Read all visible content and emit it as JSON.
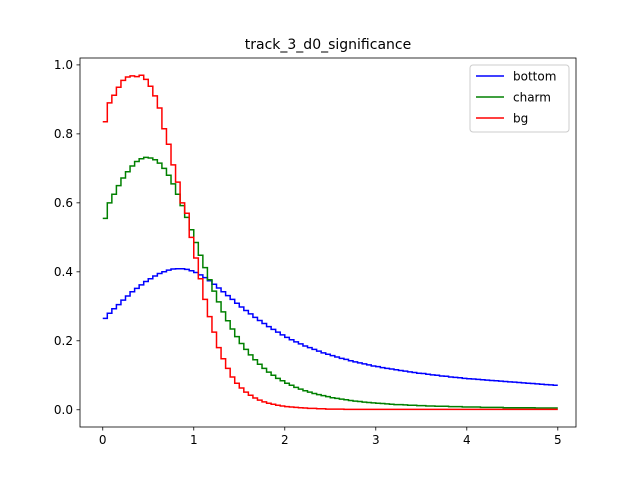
{
  "chart_data": {
    "type": "line",
    "drawstyle": "steps",
    "title": "track_3_d0_significance",
    "xlabel": "",
    "ylabel": "",
    "xlim": [
      -0.25,
      5.2
    ],
    "ylim": [
      -0.05,
      1.02
    ],
    "xticks": [
      0,
      1,
      2,
      3,
      4,
      5
    ],
    "xtick_labels": [
      "0",
      "1",
      "2",
      "3",
      "4",
      "5"
    ],
    "yticks": [
      0.0,
      0.2,
      0.4,
      0.6,
      0.8,
      1.0
    ],
    "ytick_labels": [
      "0.0",
      "0.2",
      "0.4",
      "0.6",
      "0.8",
      "1.0"
    ],
    "grid": false,
    "legend_position": "top-right",
    "bin_width": 0.05,
    "x_start": 0.0,
    "series": [
      {
        "name": "bottom",
        "color": "#0000ff",
        "values": [
          0.265,
          0.28,
          0.293,
          0.305,
          0.318,
          0.33,
          0.342,
          0.352,
          0.362,
          0.372,
          0.38,
          0.388,
          0.395,
          0.4,
          0.405,
          0.408,
          0.409,
          0.409,
          0.407,
          0.403,
          0.398,
          0.391,
          0.383,
          0.374,
          0.364,
          0.353,
          0.342,
          0.331,
          0.32,
          0.309,
          0.298,
          0.288,
          0.278,
          0.268,
          0.259,
          0.25,
          0.241,
          0.233,
          0.225,
          0.217,
          0.21,
          0.203,
          0.197,
          0.191,
          0.185,
          0.18,
          0.175,
          0.17,
          0.165,
          0.161,
          0.157,
          0.153,
          0.149,
          0.146,
          0.142,
          0.139,
          0.136,
          0.133,
          0.13,
          0.127,
          0.125,
          0.122,
          0.12,
          0.118,
          0.116,
          0.114,
          0.112,
          0.11,
          0.108,
          0.106,
          0.105,
          0.103,
          0.101,
          0.1,
          0.098,
          0.097,
          0.095,
          0.094,
          0.093,
          0.091,
          0.09,
          0.089,
          0.088,
          0.087,
          0.086,
          0.085,
          0.084,
          0.083,
          0.082,
          0.081,
          0.08,
          0.079,
          0.078,
          0.077,
          0.076,
          0.075,
          0.074,
          0.073,
          0.072,
          0.071
        ]
      },
      {
        "name": "charm",
        "color": "#008000",
        "values": [
          0.555,
          0.6,
          0.625,
          0.65,
          0.672,
          0.69,
          0.707,
          0.72,
          0.728,
          0.732,
          0.73,
          0.725,
          0.715,
          0.7,
          0.68,
          0.655,
          0.625,
          0.592,
          0.558,
          0.522,
          0.485,
          0.448,
          0.412,
          0.377,
          0.344,
          0.313,
          0.284,
          0.258,
          0.234,
          0.212,
          0.192,
          0.175,
          0.159,
          0.145,
          0.132,
          0.12,
          0.109,
          0.1,
          0.091,
          0.084,
          0.077,
          0.071,
          0.065,
          0.06,
          0.055,
          0.051,
          0.047,
          0.044,
          0.041,
          0.038,
          0.035,
          0.033,
          0.031,
          0.029,
          0.027,
          0.025,
          0.024,
          0.022,
          0.021,
          0.02,
          0.019,
          0.018,
          0.017,
          0.016,
          0.015,
          0.015,
          0.014,
          0.013,
          0.013,
          0.012,
          0.012,
          0.011,
          0.011,
          0.01,
          0.01,
          0.01,
          0.009,
          0.009,
          0.009,
          0.008,
          0.008,
          0.008,
          0.008,
          0.007,
          0.007,
          0.007,
          0.007,
          0.007,
          0.006,
          0.006,
          0.006,
          0.006,
          0.006,
          0.006,
          0.006,
          0.005,
          0.005,
          0.005,
          0.005,
          0.005
        ]
      },
      {
        "name": "bg",
        "color": "#ff0000",
        "values": [
          0.835,
          0.89,
          0.912,
          0.935,
          0.955,
          0.965,
          0.968,
          0.966,
          0.97,
          0.958,
          0.938,
          0.91,
          0.875,
          0.815,
          0.77,
          0.71,
          0.66,
          0.6,
          0.57,
          0.5,
          0.44,
          0.38,
          0.32,
          0.27,
          0.225,
          0.18,
          0.148,
          0.12,
          0.095,
          0.077,
          0.063,
          0.051,
          0.042,
          0.034,
          0.028,
          0.023,
          0.019,
          0.016,
          0.013,
          0.011,
          0.009,
          0.008,
          0.007,
          0.006,
          0.005,
          0.004,
          0.004,
          0.003,
          0.003,
          0.002,
          0.002,
          0.002,
          0.002,
          0.001,
          0.001,
          0.001,
          0.001,
          0.001,
          0.001,
          0.001,
          0.001,
          0.001,
          0.001,
          0.001,
          0.001,
          0.001,
          0.001,
          0.001,
          0.001,
          0.001,
          0.001,
          0.001,
          0.001,
          0.001,
          0.001,
          0.001,
          0.001,
          0.001,
          0.001,
          0.001,
          0.001,
          0.001,
          0.001,
          0.001,
          0.001,
          0.001,
          0.001,
          0.001,
          0.001,
          0.001,
          0.001,
          0.001,
          0.001,
          0.001,
          0.001,
          0.001,
          0.001,
          0.001,
          0.001,
          0.001
        ]
      }
    ]
  }
}
